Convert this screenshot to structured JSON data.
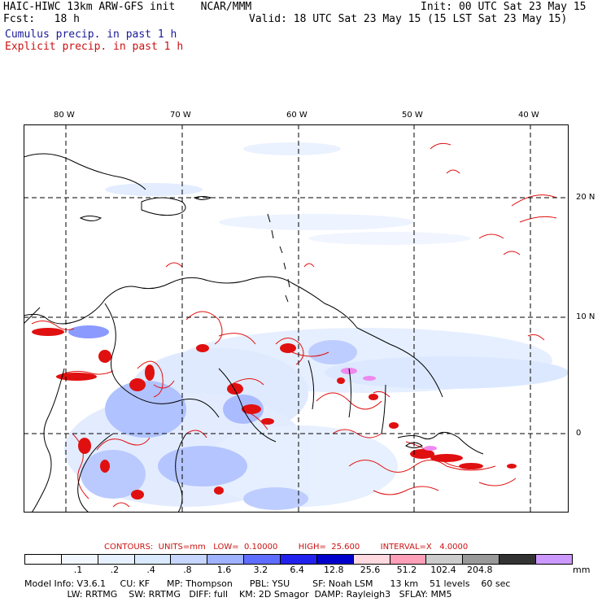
{
  "header": {
    "title_left": "HAIC-HIWC 13km ARW-GFS init    NCAR/MMM",
    "fcst": "Fcst:   18 h",
    "init": "Init: 00 UTC Sat 23 May 15",
    "valid": "Valid: 18 UTC Sat 23 May 15 (15 LST Sat 23 May 15)",
    "legend_cumulus": "Cumulus precip. in past 1 h",
    "legend_explicit": "Explicit precip. in past 1 h"
  },
  "map": {
    "longitude_labels": [
      "80 W",
      "70 W",
      "60 W",
      "50 W",
      "40 W"
    ],
    "latitude_labels": [
      "20 N",
      "10 N",
      "0"
    ],
    "colors": {
      "coast": "#000000",
      "grid": "#000000",
      "cumulus_light": "#dce9ff",
      "cumulus_mid": "#9db5ff",
      "cumulus_dark": "#3d4cff",
      "explicit": "#e01010",
      "magenta": "#ee88ee"
    }
  },
  "contours_line": "CONTOURS:  UNITS=mm   LOW=  0.10000        HIGH=  25.600        INTERVAL=X   4.0000",
  "colorbar": {
    "labels": [
      ".1",
      ".2",
      ".4",
      ".8",
      "1.6",
      "3.2",
      "6.4",
      "12.8",
      "25.6",
      "51.2",
      "102.4",
      "204.8"
    ],
    "units": "mm",
    "colors": [
      "#ffffff",
      "#f2f7ff",
      "#e6f0ff",
      "#d9eaff",
      "#c6d6ff",
      "#9fb2ff",
      "#5f6dff",
      "#2222ee",
      "#0000cc",
      "#ffd9e0",
      "#ff9fb8",
      "#cccccc",
      "#999999",
      "#333333",
      "#cc99ff"
    ]
  },
  "model_info": {
    "line1": "Model Info: V3.6.1     CU: KF      MP: Thompson      PBL: YSU        SF: Noah LSM      13 km    51 levels    60 sec",
    "line2": "               LW: RRTMG    SW: RRTMG   DIFF: full    KM: 2D Smagor  DAMP: Rayleigh3   SFLAY: MM5"
  }
}
